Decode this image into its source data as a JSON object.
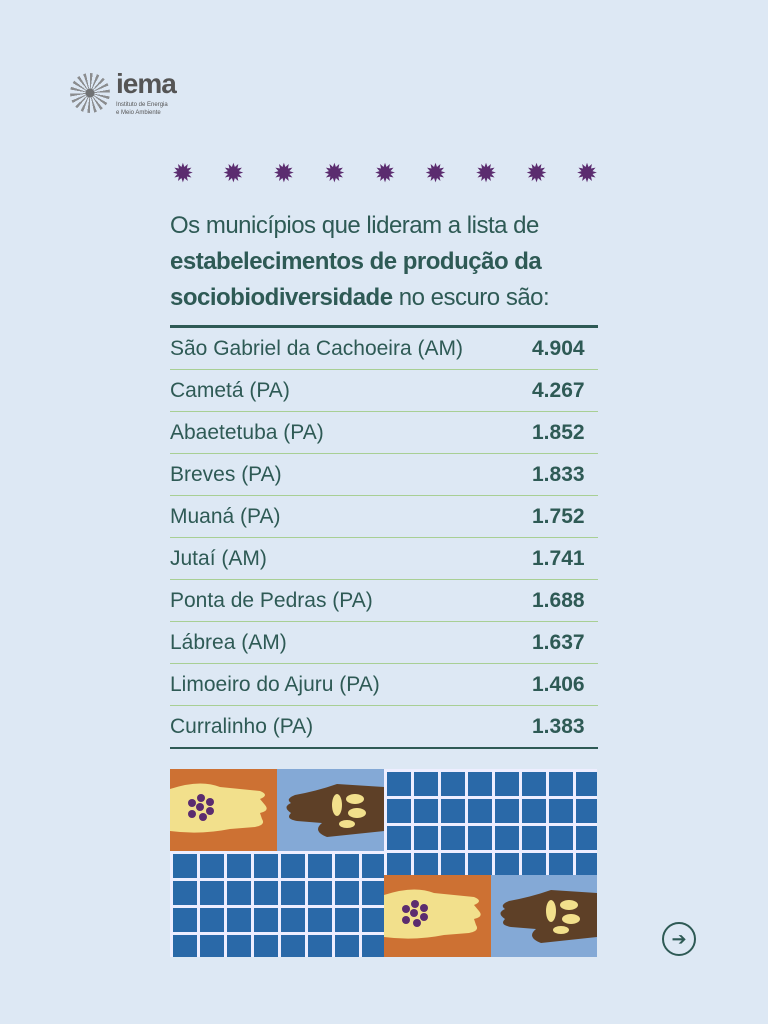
{
  "logo": {
    "name": "iema",
    "subtitle_line1": "Instituto de Energia",
    "subtitle_line2": "e Meio Ambiente"
  },
  "headline": {
    "part1": "Os municípios que lideram a lista de ",
    "bold": "estabelecimentos de produção da sociobiodiversidade",
    "part2": " no escuro são:"
  },
  "rows": [
    {
      "name": "São Gabriel da Cachoeira (AM)",
      "value": "4.904"
    },
    {
      "name": "Cametá (PA)",
      "value": "4.267"
    },
    {
      "name": "Abaetetuba (PA)",
      "value": "1.852"
    },
    {
      "name": "Breves (PA)",
      "value": "1.833"
    },
    {
      "name": "Muaná (PA)",
      "value": "1.752"
    },
    {
      "name": "Jutaí (AM)",
      "value": "1.741"
    },
    {
      "name": "Ponta de Pedras (PA)",
      "value": "1.688"
    },
    {
      "name": "Lábrea (AM)",
      "value": "1.637"
    },
    {
      "name": "Limoeiro do Ajuru (PA)",
      "value": "1.406"
    },
    {
      "name": "Curralinho (PA)",
      "value": "1.383"
    }
  ],
  "colors": {
    "text": "#2e5a55",
    "star": "#5b2c6f",
    "background": "#dde8f4"
  },
  "icons": {
    "next": "arrow-right-circle-icon",
    "star": "star-icon"
  }
}
